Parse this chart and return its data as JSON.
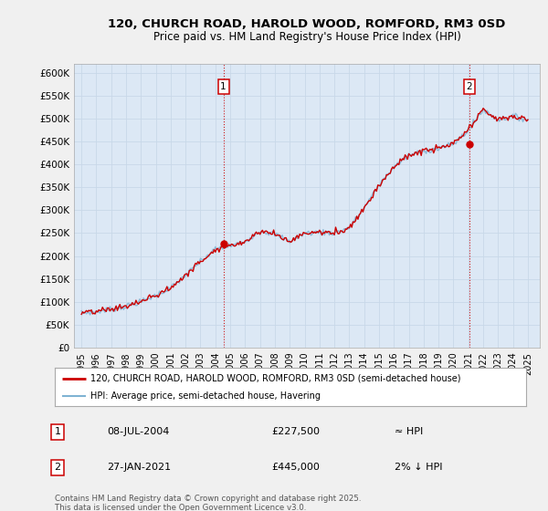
{
  "title": "120, CHURCH ROAD, HAROLD WOOD, ROMFORD, RM3 0SD",
  "subtitle": "Price paid vs. HM Land Registry's House Price Index (HPI)",
  "background_color": "#f0f0f0",
  "plot_bg_color": "#dce8f5",
  "red_color": "#cc0000",
  "blue_color": "#7fb3d3",
  "ylim": [
    0,
    620000
  ],
  "yticks": [
    0,
    50000,
    100000,
    150000,
    200000,
    250000,
    300000,
    350000,
    400000,
    450000,
    500000,
    550000,
    600000
  ],
  "sale_points": [
    {
      "year": 2004.54,
      "price": 227500,
      "label": "1"
    },
    {
      "year": 2021.07,
      "price": 445000,
      "label": "2"
    }
  ],
  "legend_items": [
    {
      "color": "#cc0000",
      "label": "120, CHURCH ROAD, HAROLD WOOD, ROMFORD, RM3 0SD (semi-detached house)"
    },
    {
      "color": "#7fb3d3",
      "label": "HPI: Average price, semi-detached house, Havering"
    }
  ],
  "annotations": [
    {
      "num": "1",
      "date": "08-JUL-2004",
      "price": "£227,500",
      "note": "≈ HPI"
    },
    {
      "num": "2",
      "date": "27-JAN-2021",
      "price": "£445,000",
      "note": "2% ↓ HPI"
    }
  ],
  "footer": "Contains HM Land Registry data © Crown copyright and database right 2025.\nThis data is licensed under the Open Government Licence v3.0.",
  "hpi_year_vals": {
    "1995": 75000,
    "1996": 78000,
    "1997": 84000,
    "1998": 90000,
    "1999": 100000,
    "2000": 114000,
    "2001": 130000,
    "2002": 158000,
    "2003": 188000,
    "2004": 215000,
    "2005": 222000,
    "2006": 232000,
    "2007": 255000,
    "2008": 248000,
    "2009": 232000,
    "2010": 250000,
    "2011": 252000,
    "2012": 250000,
    "2013": 262000,
    "2014": 305000,
    "2015": 355000,
    "2016": 395000,
    "2017": 420000,
    "2018": 430000,
    "2019": 435000,
    "2020": 445000,
    "2021": 475000,
    "2022": 520000,
    "2023": 498000,
    "2024": 505000,
    "2025": 498000
  }
}
